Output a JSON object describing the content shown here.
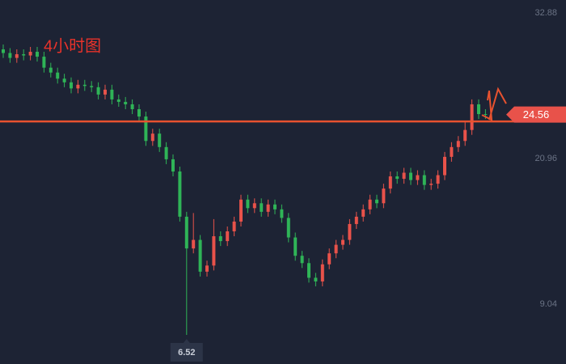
{
  "chart_data": {
    "type": "candlestick",
    "title": "4小时图",
    "up_color": "#e8524a",
    "down_color": "#2fb457",
    "line_color": "#e8522f",
    "ylim": [
      4.14,
      33.94
    ],
    "yticks": [
      32.88,
      20.96,
      9.04
    ],
    "hline": 24.0,
    "open": [
      29.9,
      29.6,
      29.2,
      29.5,
      29.4,
      29.7,
      29.3,
      28.4,
      28.0,
      27.5,
      27.2,
      26.7,
      27.0,
      26.9,
      26.8,
      26.2,
      26.6,
      25.8,
      25.6,
      25.4,
      25.0,
      24.4,
      22.4,
      23.0,
      21.9,
      20.9,
      19.9,
      16.2,
      13.6,
      14.3,
      11.7,
      12.2,
      14.6,
      14.2,
      15.0,
      15.8,
      17.6,
      16.9,
      17.3,
      16.6,
      17.2,
      16.8,
      16.1,
      14.5,
      13.0,
      12.4,
      11.2,
      10.9,
      12.3,
      13.2,
      13.9,
      14.3,
      15.6,
      16.2,
      16.8,
      17.6,
      17.3,
      18.5,
      19.5,
      19.3,
      19.8,
      19.2,
      19.6,
      18.8,
      18.9,
      19.6,
      21.1,
      21.9,
      22.4,
      23.3,
      25.4,
      24.6
    ],
    "high": [
      30.3,
      30.0,
      29.9,
      29.9,
      30.1,
      30.1,
      29.7,
      28.8,
      28.4,
      27.9,
      27.6,
      27.4,
      27.4,
      27.3,
      27.2,
      27.0,
      27.0,
      26.2,
      26.0,
      25.8,
      25.4,
      24.8,
      23.4,
      23.4,
      22.3,
      21.3,
      20.3,
      16.6,
      16.5,
      14.7,
      12.6,
      16.0,
      15.0,
      15.4,
      16.2,
      18.0,
      18.0,
      17.7,
      17.7,
      17.6,
      17.6,
      17.2,
      16.5,
      14.9,
      13.4,
      12.8,
      11.6,
      12.7,
      13.6,
      14.3,
      14.7,
      16.0,
      16.6,
      17.2,
      18.0,
      18.0,
      18.9,
      19.9,
      19.9,
      20.2,
      20.2,
      20.0,
      20.0,
      19.3,
      20.0,
      21.5,
      22.3,
      22.8,
      24.0,
      25.8,
      25.8,
      25.0
    ],
    "low": [
      29.2,
      28.8,
      28.8,
      29.0,
      29.0,
      28.9,
      28.0,
      27.6,
      27.1,
      26.8,
      26.3,
      26.3,
      26.5,
      26.4,
      25.8,
      25.8,
      25.4,
      25.2,
      25.0,
      24.6,
      24.0,
      22.0,
      22.0,
      21.5,
      20.5,
      19.5,
      15.8,
      6.52,
      13.2,
      11.3,
      11.3,
      11.8,
      13.8,
      13.8,
      14.6,
      15.4,
      16.5,
      16.5,
      16.2,
      16.2,
      16.4,
      15.7,
      14.1,
      12.6,
      12.0,
      10.8,
      10.5,
      10.5,
      11.9,
      12.8,
      13.5,
      13.9,
      15.2,
      15.8,
      16.4,
      16.9,
      16.9,
      18.1,
      18.9,
      18.9,
      18.8,
      18.8,
      18.4,
      18.4,
      18.5,
      19.2,
      20.7,
      21.5,
      22.0,
      22.9,
      24.2,
      24.2
    ],
    "close": [
      29.6,
      29.2,
      29.5,
      29.4,
      29.7,
      29.3,
      28.4,
      28.0,
      27.5,
      27.2,
      26.7,
      27.0,
      26.9,
      26.8,
      26.2,
      26.6,
      25.8,
      25.6,
      25.4,
      25.0,
      24.4,
      22.4,
      23.0,
      21.9,
      20.9,
      19.9,
      16.2,
      13.6,
      14.3,
      11.7,
      12.2,
      14.6,
      14.2,
      15.0,
      15.8,
      17.6,
      16.9,
      17.3,
      16.6,
      17.2,
      16.8,
      16.1,
      14.5,
      13.0,
      12.4,
      11.2,
      10.9,
      12.3,
      13.2,
      13.9,
      14.3,
      15.6,
      16.2,
      16.8,
      17.6,
      17.3,
      18.5,
      19.5,
      19.3,
      19.8,
      19.2,
      19.6,
      18.8,
      18.9,
      19.6,
      21.1,
      21.9,
      22.4,
      23.3,
      25.4,
      24.6,
      24.56
    ]
  }
}
